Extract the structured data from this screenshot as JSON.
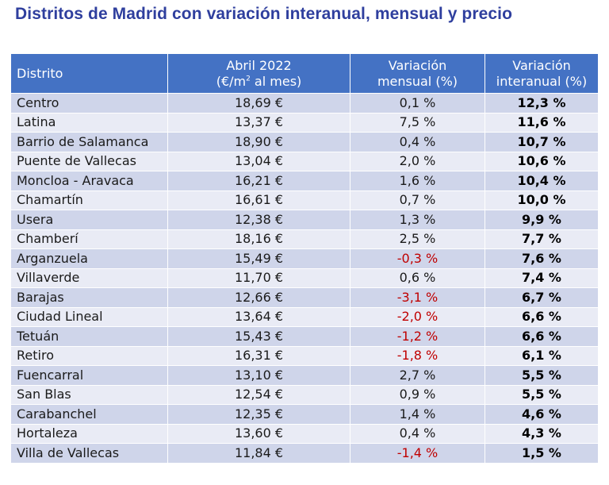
{
  "title": "Distritos de Madrid con variación interanual, mensual y precio",
  "table": {
    "headers": {
      "district": "Distrito",
      "price_line1": "Abril 2022",
      "price_line2_prefix": "(€/m",
      "price_line2_sup": "2",
      "price_line2_suffix": " al mes)",
      "monthly_line1": "Variación",
      "monthly_line2": "mensual (%)",
      "yearly_line1": "Variación",
      "yearly_line2": "interanual (%)"
    },
    "rows": [
      {
        "district": "Centro",
        "price": "18,69 €",
        "monthly": "0,1 %",
        "yearly": "12,3 %"
      },
      {
        "district": "Latina",
        "price": "13,37 €",
        "monthly": "7,5 %",
        "yearly": "11,6 %"
      },
      {
        "district": "Barrio de Salamanca",
        "price": "18,90 €",
        "monthly": "0,4 %",
        "yearly": "10,7 %"
      },
      {
        "district": "Puente de Vallecas",
        "price": "13,04 €",
        "monthly": "2,0 %",
        "yearly": "10,6 %"
      },
      {
        "district": "Moncloa - Aravaca",
        "price": "16,21 €",
        "monthly": "1,6 %",
        "yearly": "10,4 %"
      },
      {
        "district": "Chamartín",
        "price": "16,61 €",
        "monthly": "0,7 %",
        "yearly": "10,0 %"
      },
      {
        "district": "Usera",
        "price": "12,38 €",
        "monthly": "1,3 %",
        "yearly": "9,9 %"
      },
      {
        "district": "Chamberí",
        "price": "18,16 €",
        "monthly": "2,5 %",
        "yearly": "7,7 %"
      },
      {
        "district": "Arganzuela",
        "price": "15,49 €",
        "monthly": "-0,3 %",
        "yearly": "7,6 %"
      },
      {
        "district": "Villaverde",
        "price": "11,70 €",
        "monthly": "0,6 %",
        "yearly": "7,4 %"
      },
      {
        "district": "Barajas",
        "price": "12,66 €",
        "monthly": "-3,1 %",
        "yearly": "6,7 %"
      },
      {
        "district": "Ciudad Lineal",
        "price": "13,64 €",
        "monthly": "-2,0 %",
        "yearly": "6,6 %"
      },
      {
        "district": "Tetuán",
        "price": "15,43 €",
        "monthly": "-1,2 %",
        "yearly": "6,6 %"
      },
      {
        "district": "Retiro",
        "price": "16,31 €",
        "monthly": "-1,8 %",
        "yearly": "6,1 %"
      },
      {
        "district": "Fuencarral",
        "price": "13,10 €",
        "monthly": "2,7 %",
        "yearly": "5,5 %"
      },
      {
        "district": "San Blas",
        "price": "12,54 €",
        "monthly": "0,9 %",
        "yearly": "5,5 %"
      },
      {
        "district": "Carabanchel",
        "price": "12,35 €",
        "monthly": "1,4 %",
        "yearly": "4,6 %"
      },
      {
        "district": "Hortaleza",
        "price": "13,60 €",
        "monthly": "0,4 %",
        "yearly": "4,3 %"
      },
      {
        "district": "Villa de Vallecas",
        "price": "11,84 €",
        "monthly": "-1,4 %",
        "yearly": "1,5 %"
      }
    ]
  },
  "colors": {
    "title": "#2f3f9e",
    "header_bg": "#4472c4",
    "row_dark": "#cfd5ea",
    "row_light": "#e9ebf5",
    "negative": "#c00000"
  }
}
